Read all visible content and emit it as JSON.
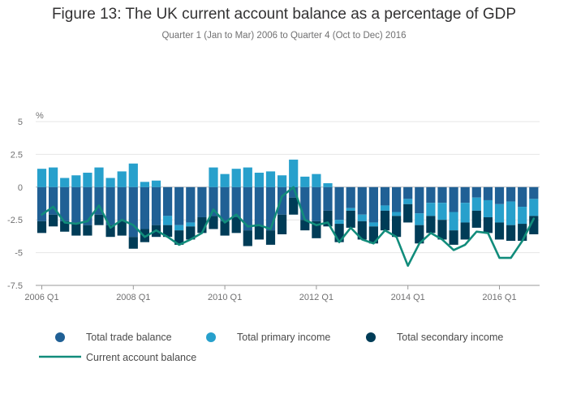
{
  "chart_data": {
    "type": "bar",
    "title": "Figure 13: The UK current account balance as a percentage of GDP",
    "subtitle": "Quarter 1 (Jan to Mar) 2006 to Quarter 4 (Oct to Dec) 2016",
    "ylabel": "%",
    "ylim": [
      -7.5,
      5
    ],
    "yticks": [
      "5",
      "2.5",
      "0",
      "-2.5",
      "-5",
      "-7.5"
    ],
    "ytick_values": [
      5,
      2.5,
      0,
      -2.5,
      -5,
      -7.5
    ],
    "xtick_labels": [
      "2006 Q1",
      "2008 Q1",
      "2010 Q1",
      "2012 Q1",
      "2014 Q1",
      "2016 Q1"
    ],
    "xtick_index": [
      0,
      8,
      16,
      24,
      32,
      40
    ],
    "grid": true,
    "legend_position": "bottom",
    "categories": [
      "2006 Q1",
      "2006 Q2",
      "2006 Q3",
      "2006 Q4",
      "2007 Q1",
      "2007 Q2",
      "2007 Q3",
      "2007 Q4",
      "2008 Q1",
      "2008 Q2",
      "2008 Q3",
      "2008 Q4",
      "2009 Q1",
      "2009 Q2",
      "2009 Q3",
      "2009 Q4",
      "2010 Q1",
      "2010 Q2",
      "2010 Q3",
      "2010 Q4",
      "2011 Q1",
      "2011 Q2",
      "2011 Q3",
      "2011 Q4",
      "2012 Q1",
      "2012 Q2",
      "2012 Q3",
      "2012 Q4",
      "2013 Q1",
      "2013 Q2",
      "2013 Q3",
      "2013 Q4",
      "2014 Q1",
      "2014 Q2",
      "2014 Q3",
      "2014 Q4",
      "2015 Q1",
      "2015 Q2",
      "2015 Q3",
      "2015 Q4",
      "2016 Q1",
      "2016 Q2",
      "2016 Q3",
      "2016 Q4"
    ],
    "series": [
      {
        "name": "Total trade balance",
        "color": "#206095",
        "kind": "bar",
        "values": [
          -2.6,
          -2.1,
          -2.6,
          -2.7,
          -2.9,
          -2.1,
          -2.9,
          -2.6,
          -3.8,
          -3.2,
          -2.9,
          -2.2,
          -2.9,
          -2.7,
          -2.3,
          -2.2,
          -2.6,
          -2.3,
          -3.3,
          -2.9,
          -3.3,
          -2.1,
          -0.8,
          -2.5,
          -2.6,
          -1.8,
          -2.5,
          -1.6,
          -2.1,
          -2.7,
          -1.4,
          -1.9,
          -0.9,
          -2.0,
          -1.2,
          -1.2,
          -1.9,
          -1.2,
          -0.8,
          -1.0,
          -1.3,
          -1.1,
          -1.5,
          -0.9
        ]
      },
      {
        "name": "Total primary income",
        "color": "#27A0CC",
        "kind": "bar",
        "values": [
          1.4,
          1.5,
          0.7,
          0.9,
          1.1,
          1.5,
          0.7,
          1.2,
          1.8,
          0.4,
          0.5,
          -0.7,
          -0.4,
          -0.3,
          0.0,
          1.5,
          1.0,
          1.4,
          1.5,
          1.1,
          1.2,
          0.9,
          2.1,
          0.8,
          1.0,
          0.3,
          -0.3,
          -0.2,
          -0.5,
          -0.3,
          -0.4,
          -0.3,
          -0.4,
          -0.9,
          -1.0,
          -1.3,
          -1.4,
          -1.5,
          -1.0,
          -1.3,
          -1.4,
          -1.8,
          -1.3,
          -1.3
        ]
      },
      {
        "name": "Total secondary income",
        "color": "#003C57",
        "kind": "bar",
        "values": [
          -0.9,
          -0.9,
          -0.8,
          -1.0,
          -0.8,
          -0.8,
          -0.9,
          -1.1,
          -0.9,
          -1.0,
          -0.9,
          -0.9,
          -1.1,
          -1.0,
          -1.2,
          -1.0,
          -1.1,
          -1.2,
          -1.2,
          -1.1,
          -1.1,
          -1.5,
          -1.3,
          -0.8,
          -1.3,
          -1.2,
          -1.4,
          -1.3,
          -1.4,
          -1.3,
          -1.5,
          -1.6,
          -1.4,
          -1.4,
          -1.3,
          -1.5,
          -1.1,
          -1.3,
          -1.3,
          -1.2,
          -1.3,
          -1.2,
          -1.3,
          -1.4
        ]
      },
      {
        "name": "Current account balance",
        "color": "#118C7B",
        "kind": "line",
        "values": [
          -2.1,
          -1.5,
          -2.7,
          -2.8,
          -2.6,
          -1.4,
          -3.1,
          -2.5,
          -2.9,
          -3.8,
          -3.3,
          -3.8,
          -4.4,
          -4.0,
          -3.5,
          -1.7,
          -2.7,
          -2.1,
          -3.0,
          -2.9,
          -3.2,
          -0.7,
          0.0,
          -2.5,
          -2.9,
          -2.7,
          -4.2,
          -3.1,
          -4.0,
          -4.3,
          -3.3,
          -3.8,
          -6.0,
          -4.3,
          -3.5,
          -4.0,
          -4.8,
          -4.4,
          -3.4,
          -3.5,
          -5.4,
          -5.4,
          -4.1,
          -2.4
        ]
      }
    ]
  }
}
